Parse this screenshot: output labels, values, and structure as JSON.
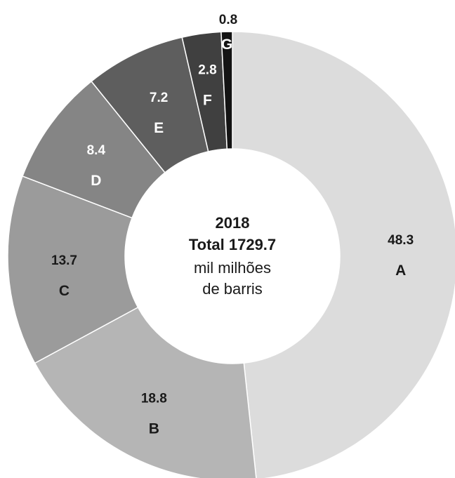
{
  "chart_data": {
    "type": "pie",
    "donut": true,
    "categories": [
      "A",
      "B",
      "C",
      "D",
      "E",
      "F",
      "G"
    ],
    "values": [
      48.3,
      18.8,
      13.7,
      8.4,
      7.2,
      2.8,
      0.8
    ],
    "colors": [
      "#dcdcdc",
      "#b5b5b5",
      "#9b9b9b",
      "#858585",
      "#5e5e5e",
      "#404040",
      "#141414"
    ],
    "label_colors": [
      "#1a1a1a",
      "#1a1a1a",
      "#1a1a1a",
      "#ffffff",
      "#ffffff",
      "#ffffff",
      "#ffffff"
    ],
    "center": {
      "year": "2018",
      "total": "Total 1729.7",
      "unit_line1": "mil milhões",
      "unit_line2": "de barris"
    }
  }
}
